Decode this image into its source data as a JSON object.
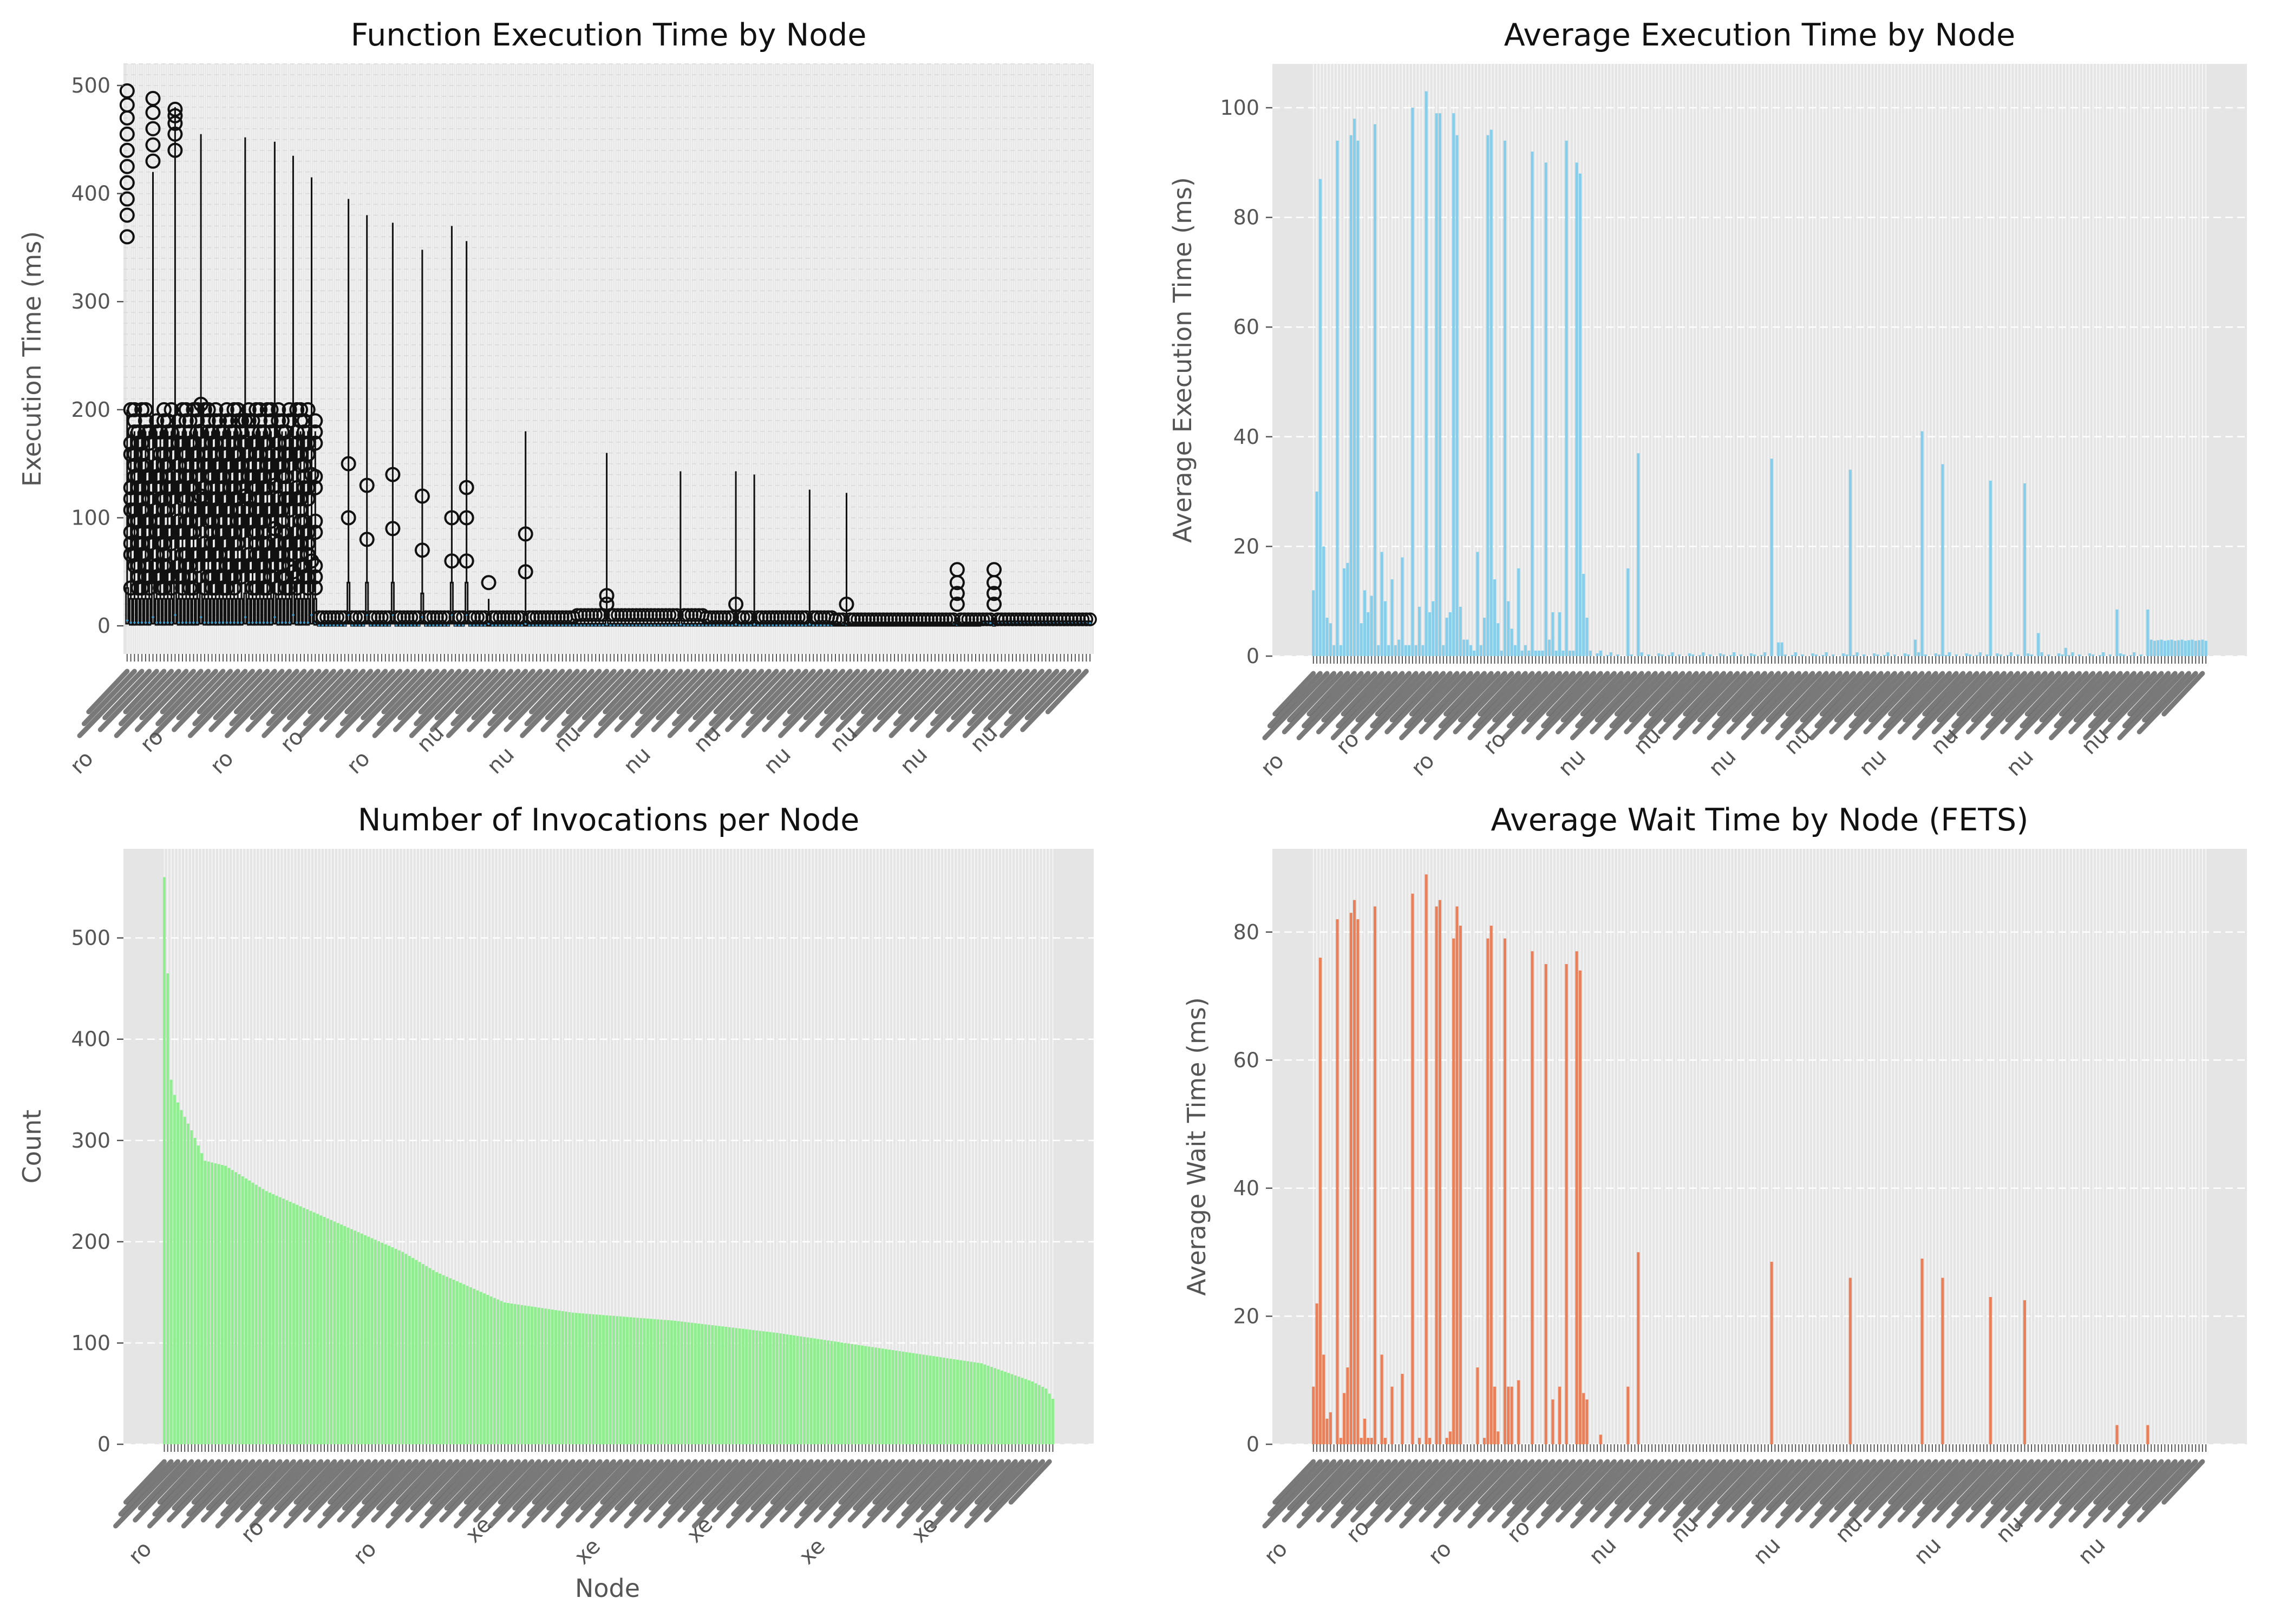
{
  "chart_data": [
    {
      "type": "box",
      "title": "Function Execution Time by Node",
      "xlabel": "",
      "ylabel": "Execution Time (ms)",
      "ylim": [
        -26,
        520
      ],
      "yticks": [
        0,
        100,
        200,
        300,
        400,
        500
      ],
      "grid": true,
      "tick_labels_legible": false,
      "tick_label_fragments": [
        "ro",
        "ro",
        "ro",
        "ro",
        "ro",
        "nu",
        "nu",
        "nu",
        "nu",
        "nu",
        "nu",
        "nu",
        "nu",
        "nu"
      ],
      "n_categories": 262,
      "segments": [
        {
          "count": 52,
          "q1": 1,
          "median": 3,
          "q3": 25,
          "whisker_high": 180,
          "outlier_max": 200,
          "outlier_count": 10
        },
        {
          "count": 70,
          "q1": 0,
          "median": 0.5,
          "q3": 2,
          "whisker_high": 4,
          "outlier_max": 8,
          "outlier_count": 0
        },
        {
          "count": 35,
          "q1": 0,
          "median": 0.5,
          "q3": 2,
          "whisker_high": 4,
          "outlier_max": 10,
          "outlier_count": 0
        },
        {
          "count": 35,
          "q1": 0,
          "median": 0.5,
          "q3": 2,
          "whisker_high": 4,
          "outlier_max": 8,
          "outlier_count": 0
        },
        {
          "count": 40,
          "q1": 0,
          "median": 1,
          "q3": 2,
          "whisker_high": 4,
          "outlier_max": 6,
          "outlier_count": 0
        },
        {
          "count": 30,
          "q1": 1,
          "median": 2.5,
          "q3": 4,
          "whisker_high": 5,
          "outlier_max": 6,
          "outlier_count": 0
        }
      ],
      "highlights": [
        {
          "cat": 0,
          "q1": 2,
          "median": 5,
          "q3": 35,
          "whisker_high": 200,
          "outliers": [
            360,
            380,
            395,
            410,
            425,
            440,
            455,
            470,
            482,
            495
          ]
        },
        {
          "cat": 7,
          "q1": 2,
          "median": 8,
          "q3": 40,
          "whisker_high": 420,
          "outliers": [
            430,
            445,
            460,
            475,
            488
          ]
        },
        {
          "cat": 13,
          "q1": 2,
          "median": 10,
          "q3": 45,
          "whisker_high": 480,
          "outliers": [
            440,
            455,
            465,
            472,
            478
          ]
        },
        {
          "cat": 20,
          "q1": 2,
          "median": 8,
          "q3": 30,
          "whisker_high": 455,
          "outliers": [
            120,
            180,
            205
          ]
        },
        {
          "cat": 32,
          "q1": 2,
          "median": 8,
          "q3": 30,
          "whisker_high": 452,
          "outliers": [
            120,
            170,
            190
          ]
        },
        {
          "cat": 40,
          "q1": 2,
          "median": 8,
          "q3": 30,
          "whisker_high": 448,
          "outliers": [
            90,
            130
          ]
        },
        {
          "cat": 45,
          "q1": 2,
          "median": 10,
          "q3": 40,
          "whisker_high": 435,
          "outliers": [
            50
          ]
        },
        {
          "cat": 50,
          "q1": 2,
          "median": 10,
          "q3": 40,
          "whisker_high": 415,
          "outliers": [
            60,
            140
          ]
        },
        {
          "cat": 60,
          "q1": 2,
          "median": 10,
          "q3": 40,
          "whisker_high": 395,
          "outliers": [
            100,
            150
          ]
        },
        {
          "cat": 65,
          "q1": 2,
          "median": 10,
          "q3": 40,
          "whisker_high": 380,
          "outliers": [
            80,
            130
          ]
        },
        {
          "cat": 72,
          "q1": 2,
          "median": 10,
          "q3": 40,
          "whisker_high": 373,
          "outliers": [
            90,
            140
          ]
        },
        {
          "cat": 80,
          "q1": 2,
          "median": 8,
          "q3": 30,
          "whisker_high": 348,
          "outliers": [
            70,
            120
          ]
        },
        {
          "cat": 88,
          "q1": 2,
          "median": 10,
          "q3": 40,
          "whisker_high": 370,
          "outliers": [
            60,
            100
          ]
        },
        {
          "cat": 92,
          "q1": 2,
          "median": 10,
          "q3": 40,
          "whisker_high": 356,
          "outliers": [
            60,
            100,
            128
          ]
        },
        {
          "cat": 98,
          "q1": 0,
          "median": 2,
          "q3": 10,
          "whisker_high": 25,
          "outliers": [
            40
          ]
        },
        {
          "cat": 108,
          "q1": 0,
          "median": 2,
          "q3": 10,
          "whisker_high": 180,
          "outliers": [
            50,
            85
          ]
        },
        {
          "cat": 130,
          "q1": 0,
          "median": 1,
          "q3": 5,
          "whisker_high": 160,
          "outliers": [
            20,
            28
          ]
        },
        {
          "cat": 150,
          "q1": 0,
          "median": 1,
          "q3": 5,
          "whisker_high": 143,
          "outliers": []
        },
        {
          "cat": 165,
          "q1": 0,
          "median": 1,
          "q3": 5,
          "whisker_high": 143,
          "outliers": [
            20
          ]
        },
        {
          "cat": 170,
          "q1": 0,
          "median": 1,
          "q3": 5,
          "whisker_high": 140,
          "outliers": []
        },
        {
          "cat": 185,
          "q1": 0,
          "median": 1,
          "q3": 5,
          "whisker_high": 126,
          "outliers": []
        },
        {
          "cat": 195,
          "q1": 0,
          "median": 1,
          "q3": 5,
          "whisker_high": 123,
          "outliers": [
            20
          ]
        },
        {
          "cat": 225,
          "q1": 0,
          "median": 1,
          "q3": 4,
          "whisker_high": 8,
          "outliers": [
            20,
            30,
            40,
            52
          ]
        },
        {
          "cat": 235,
          "q1": 0,
          "median": 1,
          "q3": 4,
          "whisker_high": 8,
          "outliers": [
            20,
            30,
            40,
            52
          ]
        }
      ]
    },
    {
      "type": "bar",
      "title": "Average Execution Time by Node",
      "xlabel": "",
      "ylabel": "Average Execution Time (ms)",
      "ylim": [
        0,
        108
      ],
      "yticks": [
        0,
        20,
        40,
        60,
        80,
        100
      ],
      "grid": true,
      "color": "#87CEEB",
      "tick_labels_legible": false,
      "tick_label_fragments": [
        "ro",
        "ro",
        "ro",
        "ro",
        "nu",
        "nu",
        "nu",
        "nu",
        "nu",
        "nu",
        "nu",
        "nu"
      ],
      "n_categories": 262,
      "baseline_values": [
        12,
        30,
        87,
        20,
        7,
        6,
        2,
        94,
        2,
        16,
        17,
        95,
        98,
        94,
        6,
        12,
        8,
        11,
        97,
        2,
        19,
        10,
        2,
        14,
        2,
        3,
        18,
        2,
        2,
        100,
        2,
        9,
        2,
        103,
        8,
        10,
        99,
        99,
        2,
        7,
        8,
        99,
        95,
        9,
        3,
        3,
        2,
        1,
        19,
        2,
        7,
        95,
        96,
        14,
        6,
        1,
        94,
        10,
        5,
        2,
        16,
        1,
        2,
        1,
        92,
        1,
        1,
        1,
        90,
        3,
        8,
        1,
        8,
        1,
        94,
        1,
        1,
        90,
        88,
        15,
        7,
        1
      ],
      "tail_pattern": [
        0,
        0,
        0.5,
        0.3,
        0,
        0.2,
        0.7,
        0,
        0.3
      ],
      "spikes": {
        "84": 1,
        "92": 16,
        "95": 37,
        "134": 36,
        "136": 2.5,
        "137": 2.5,
        "157": 34,
        "176": 3,
        "178": 41,
        "184": 35,
        "198": 32,
        "208": 31.5,
        "212": 4.2,
        "220": 1.5,
        "235": 8.5,
        "244": 8.5
      },
      "tail_rise_from": 245,
      "tail_rise_value": 2.8
    },
    {
      "type": "bar",
      "title": "Number of Invocations per Node",
      "xlabel": "Node",
      "ylabel": "Count",
      "ylim": [
        0,
        588
      ],
      "yticks": [
        0,
        100,
        200,
        300,
        400,
        500
      ],
      "grid": true,
      "color": "#90EE90",
      "tick_labels_legible": false,
      "tick_label_fragments": [
        "ro",
        "ro",
        "ro",
        "xe",
        "xe",
        "xe",
        "xe",
        "xe"
      ],
      "n_categories": 262,
      "anchors": [
        [
          0,
          560
        ],
        [
          1,
          465
        ],
        [
          2,
          360
        ],
        [
          3,
          345
        ],
        [
          5,
          330
        ],
        [
          8,
          310
        ],
        [
          12,
          280
        ],
        [
          18,
          275
        ],
        [
          30,
          250
        ],
        [
          50,
          220
        ],
        [
          70,
          190
        ],
        [
          80,
          170
        ],
        [
          90,
          155
        ],
        [
          100,
          140
        ],
        [
          120,
          130
        ],
        [
          150,
          122
        ],
        [
          180,
          110
        ],
        [
          210,
          95
        ],
        [
          240,
          80
        ],
        [
          255,
          62
        ],
        [
          259,
          55
        ],
        [
          261,
          45
        ]
      ]
    },
    {
      "type": "bar",
      "title": "Average Wait Time by Node (FETS)",
      "xlabel": "",
      "ylabel": "Average Wait Time (ms)",
      "ylim": [
        0,
        93
      ],
      "yticks": [
        0,
        20,
        40,
        60,
        80
      ],
      "grid": true,
      "color": "#E9805A",
      "tick_labels_legible": false,
      "tick_label_fragments": [
        "ro",
        "ro",
        "ro",
        "ro",
        "nu",
        "nu",
        "nu",
        "nu",
        "nu",
        "nu",
        "nu"
      ],
      "n_categories": 262,
      "baseline_values": [
        9,
        22,
        76,
        14,
        4,
        5,
        0,
        82,
        1,
        8,
        12,
        83,
        85,
        82,
        1,
        4,
        1,
        1,
        84,
        0,
        14,
        1,
        0,
        9,
        0,
        0,
        11,
        0,
        0,
        86,
        0,
        1,
        0,
        89,
        1,
        0,
        84,
        85,
        0,
        1,
        2,
        79,
        84,
        81,
        0,
        0,
        0,
        0,
        12,
        0,
        1,
        79,
        81,
        9,
        2,
        0,
        79,
        9,
        9,
        0,
        10,
        0,
        0,
        0,
        77,
        0,
        0,
        0,
        75,
        0,
        7,
        0,
        9,
        0,
        75,
        0,
        0,
        77,
        74,
        8,
        7,
        0
      ],
      "tail_pattern": [
        0
      ],
      "spikes": {
        "84": 1.5,
        "92": 9,
        "95": 30,
        "134": 28.5,
        "157": 26,
        "178": 29,
        "184": 26,
        "198": 23,
        "208": 22.5,
        "235": 3,
        "244": 3
      },
      "tail_rise_from": 262,
      "tail_rise_value": 0
    }
  ]
}
